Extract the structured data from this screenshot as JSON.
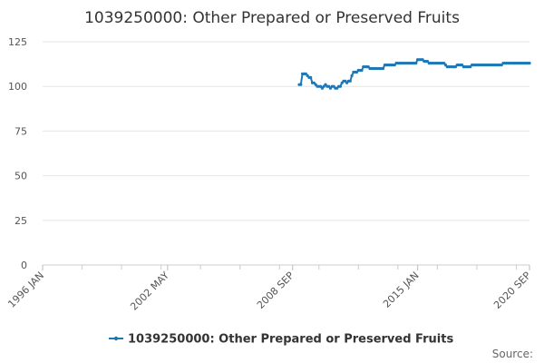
{
  "chart_data": {
    "type": "line",
    "title": "1039250000: Other Prepared or Preserved Fruits",
    "xlabel": "",
    "ylabel": "",
    "source_label": "Source:",
    "x_range": [
      "1996-01",
      "2020-09"
    ],
    "x_tick_labels": [
      "1996 JAN",
      "2002 MAY",
      "2008 SEP",
      "2015 JAN",
      "2020 SEP"
    ],
    "x_tick_dates": [
      "1996-01",
      "2002-05",
      "2008-09",
      "2015-01",
      "2020-09"
    ],
    "ylim": [
      0,
      125
    ],
    "y_ticks": [
      0,
      25,
      50,
      75,
      100,
      125
    ],
    "grid": true,
    "legend": "bottom-center",
    "series": [
      {
        "name": "1039250000: Other Prepared or Preserved Fruits",
        "color": "#1f77b4",
        "points": [
          [
            "2009-01",
            101
          ],
          [
            "2009-02",
            101
          ],
          [
            "2009-03",
            107
          ],
          [
            "2009-04",
            107
          ],
          [
            "2009-05",
            107
          ],
          [
            "2009-06",
            106
          ],
          [
            "2009-07",
            105
          ],
          [
            "2009-08",
            105
          ],
          [
            "2009-09",
            102
          ],
          [
            "2009-10",
            102
          ],
          [
            "2009-11",
            101
          ],
          [
            "2009-12",
            100
          ],
          [
            "2010-01",
            100
          ],
          [
            "2010-02",
            100
          ],
          [
            "2010-03",
            99
          ],
          [
            "2010-04",
            100
          ],
          [
            "2010-05",
            101
          ],
          [
            "2010-06",
            100
          ],
          [
            "2010-07",
            100
          ],
          [
            "2010-08",
            99
          ],
          [
            "2010-09",
            100
          ],
          [
            "2010-10",
            100
          ],
          [
            "2010-11",
            99
          ],
          [
            "2010-12",
            99
          ],
          [
            "2011-01",
            100
          ],
          [
            "2011-02",
            100
          ],
          [
            "2011-03",
            102
          ],
          [
            "2011-04",
            103
          ],
          [
            "2011-05",
            103
          ],
          [
            "2011-06",
            102
          ],
          [
            "2011-07",
            103
          ],
          [
            "2011-08",
            103
          ],
          [
            "2011-09",
            106
          ],
          [
            "2011-10",
            108
          ],
          [
            "2011-11",
            108
          ],
          [
            "2011-12",
            108
          ],
          [
            "2012-01",
            109
          ],
          [
            "2012-02",
            109
          ],
          [
            "2012-03",
            109
          ],
          [
            "2012-04",
            111
          ],
          [
            "2012-05",
            111
          ],
          [
            "2012-06",
            111
          ],
          [
            "2012-07",
            111
          ],
          [
            "2012-08",
            110
          ],
          [
            "2012-09",
            110
          ],
          [
            "2012-10",
            110
          ],
          [
            "2012-11",
            110
          ],
          [
            "2012-12",
            110
          ],
          [
            "2013-01",
            110
          ],
          [
            "2013-02",
            110
          ],
          [
            "2013-03",
            110
          ],
          [
            "2013-04",
            110
          ],
          [
            "2013-05",
            112
          ],
          [
            "2013-06",
            112
          ],
          [
            "2013-07",
            112
          ],
          [
            "2013-08",
            112
          ],
          [
            "2013-09",
            112
          ],
          [
            "2013-10",
            112
          ],
          [
            "2013-11",
            112
          ],
          [
            "2013-12",
            113
          ],
          [
            "2014-01",
            113
          ],
          [
            "2014-02",
            113
          ],
          [
            "2014-03",
            113
          ],
          [
            "2014-04",
            113
          ],
          [
            "2014-05",
            113
          ],
          [
            "2014-06",
            113
          ],
          [
            "2014-07",
            113
          ],
          [
            "2014-08",
            113
          ],
          [
            "2014-09",
            113
          ],
          [
            "2014-10",
            113
          ],
          [
            "2014-11",
            113
          ],
          [
            "2014-12",
            113
          ],
          [
            "2015-01",
            115
          ],
          [
            "2015-02",
            115
          ],
          [
            "2015-03",
            115
          ],
          [
            "2015-04",
            115
          ],
          [
            "2015-05",
            114
          ],
          [
            "2015-06",
            114
          ],
          [
            "2015-07",
            114
          ],
          [
            "2015-08",
            113
          ],
          [
            "2015-09",
            113
          ],
          [
            "2015-10",
            113
          ],
          [
            "2015-11",
            113
          ],
          [
            "2015-12",
            113
          ],
          [
            "2016-01",
            113
          ],
          [
            "2016-02",
            113
          ],
          [
            "2016-03",
            113
          ],
          [
            "2016-04",
            113
          ],
          [
            "2016-05",
            113
          ],
          [
            "2016-06",
            112
          ],
          [
            "2016-07",
            111
          ],
          [
            "2016-08",
            111
          ],
          [
            "2016-09",
            111
          ],
          [
            "2016-10",
            111
          ],
          [
            "2016-11",
            111
          ],
          [
            "2016-12",
            111
          ],
          [
            "2017-01",
            112
          ],
          [
            "2017-02",
            112
          ],
          [
            "2017-03",
            112
          ],
          [
            "2017-04",
            112
          ],
          [
            "2017-05",
            111
          ],
          [
            "2017-06",
            111
          ],
          [
            "2017-07",
            111
          ],
          [
            "2017-08",
            111
          ],
          [
            "2017-09",
            111
          ],
          [
            "2017-10",
            112
          ],
          [
            "2017-11",
            112
          ],
          [
            "2017-12",
            112
          ],
          [
            "2018-01",
            112
          ],
          [
            "2018-02",
            112
          ],
          [
            "2018-03",
            112
          ],
          [
            "2018-04",
            112
          ],
          [
            "2018-05",
            112
          ],
          [
            "2018-06",
            112
          ],
          [
            "2018-07",
            112
          ],
          [
            "2018-08",
            112
          ],
          [
            "2018-09",
            112
          ],
          [
            "2018-10",
            112
          ],
          [
            "2018-11",
            112
          ],
          [
            "2018-12",
            112
          ],
          [
            "2019-01",
            112
          ],
          [
            "2019-02",
            112
          ],
          [
            "2019-03",
            112
          ],
          [
            "2019-04",
            112
          ],
          [
            "2019-05",
            113
          ],
          [
            "2019-06",
            113
          ],
          [
            "2019-07",
            113
          ],
          [
            "2019-08",
            113
          ],
          [
            "2019-09",
            113
          ],
          [
            "2019-10",
            113
          ],
          [
            "2019-11",
            113
          ],
          [
            "2019-12",
            113
          ],
          [
            "2020-01",
            113
          ],
          [
            "2020-02",
            113
          ],
          [
            "2020-03",
            113
          ],
          [
            "2020-04",
            113
          ],
          [
            "2020-05",
            113
          ],
          [
            "2020-06",
            113
          ],
          [
            "2020-07",
            113
          ],
          [
            "2020-08",
            113
          ],
          [
            "2020-09",
            113
          ]
        ]
      }
    ]
  }
}
